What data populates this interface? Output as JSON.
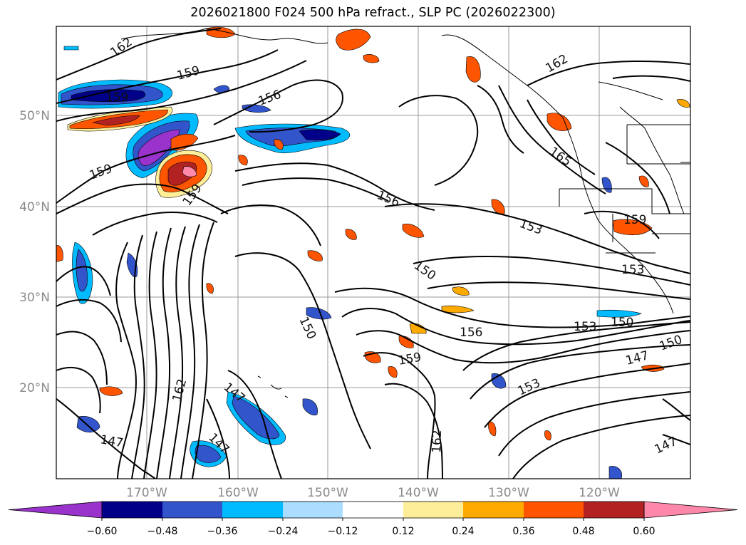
{
  "title": "2026021800 F024 500 hPa refract., SLP PC (2026022300)",
  "map": {
    "lon_ticks": [
      "170°W",
      "160°W",
      "150°W",
      "140°W",
      "130°W",
      "120°W"
    ],
    "lat_ticks": [
      "50°N",
      "40°N",
      "30°N",
      "20°N"
    ]
  },
  "contour_labels": [
    "162",
    "159",
    "159",
    "156",
    "159",
    "159",
    "156",
    "153",
    "150",
    "153",
    "150",
    "156",
    "159",
    "162",
    "153",
    "147",
    "162",
    "147",
    "147",
    "162",
    "147",
    "165",
    "159",
    "153",
    "150",
    "150",
    "147"
  ],
  "colorbar": {
    "tick_labels": [
      "−0.60",
      "−0.48",
      "−0.36",
      "−0.24",
      "−0.12",
      "0.12",
      "0.24",
      "0.36",
      "0.48",
      "0.60"
    ],
    "colors": [
      "#9933cc",
      "#000088",
      "#3355cc",
      "#00bbff",
      "#aaddff",
      "#ffffff",
      "#ffee99",
      "#ffaa00",
      "#ff5500",
      "#b22222",
      "#ff88aa"
    ]
  }
}
